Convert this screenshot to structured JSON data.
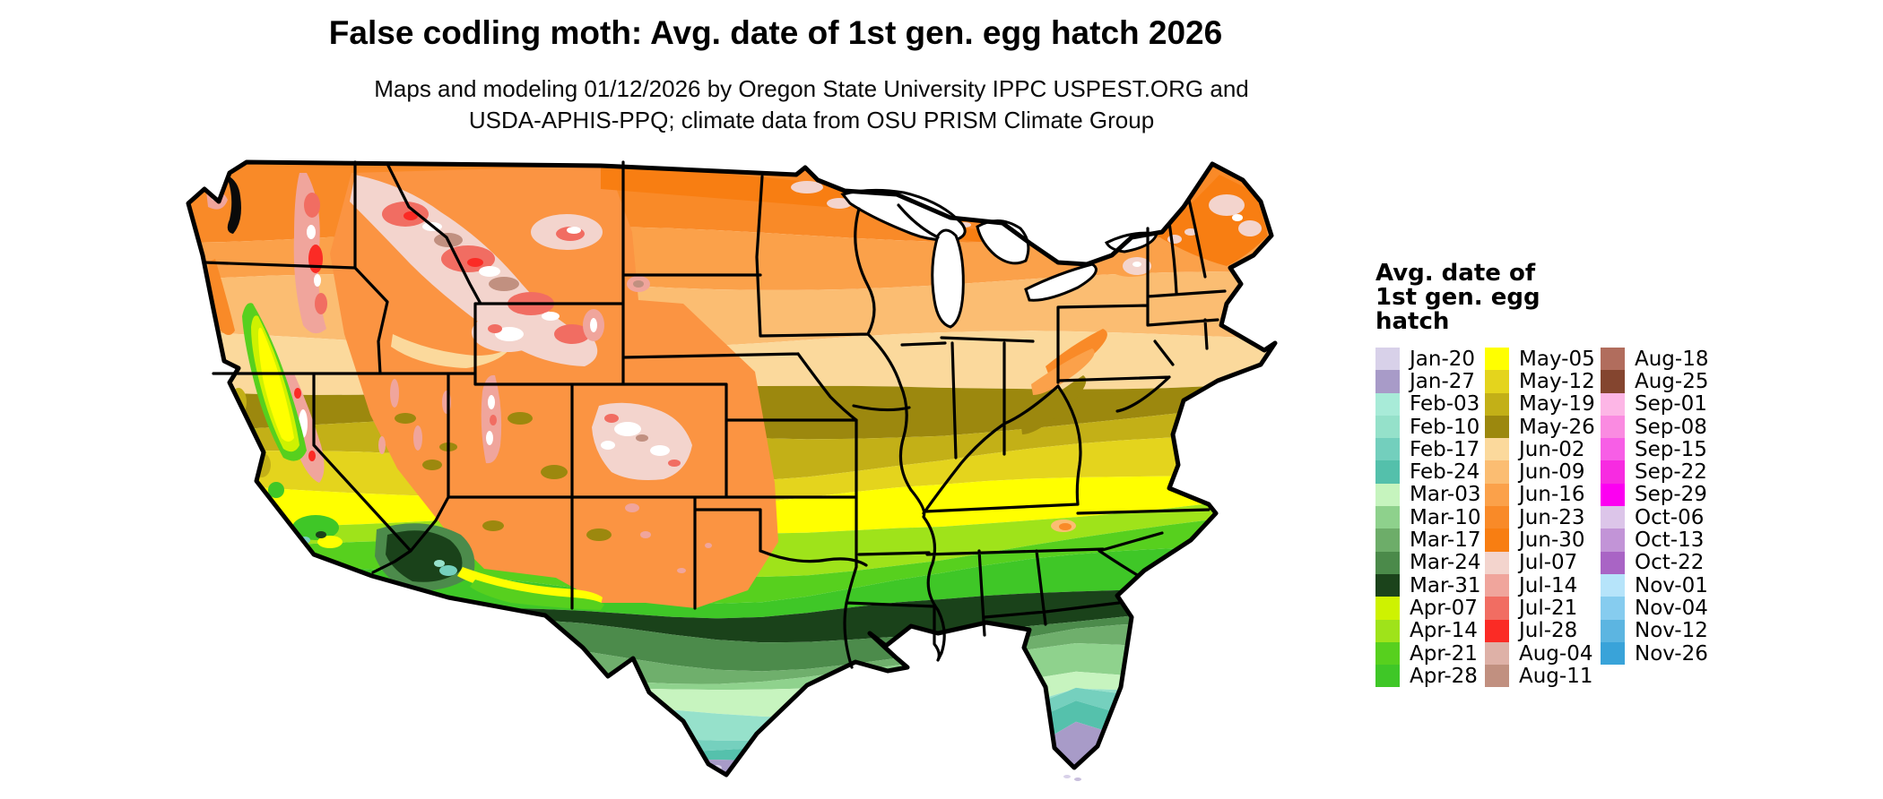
{
  "header": {
    "title": "False codling moth: Avg. date of 1st gen. egg hatch 2026",
    "subtitle_line1": "Maps and modeling 01/12/2026 by Oregon State University IPPC USPEST.ORG and",
    "subtitle_line2": "USDA-APHIS-PPQ; climate data from OSU PRISM Climate Group"
  },
  "legend": {
    "title_lines": [
      "Avg. date of",
      "1st gen. egg",
      "hatch"
    ],
    "columns": [
      [
        {
          "label": "Jan-20",
          "color": "#D8D1E9"
        },
        {
          "label": "Jan-27",
          "color": "#A89BC8"
        },
        {
          "label": "Feb-03",
          "color": "#A8EBD8"
        },
        {
          "label": "Feb-10",
          "color": "#95E1CA"
        },
        {
          "label": "Feb-17",
          "color": "#73CFBD"
        },
        {
          "label": "Feb-24",
          "color": "#54C0AB"
        },
        {
          "label": "Mar-03",
          "color": "#C6F4BE"
        },
        {
          "label": "Mar-10",
          "color": "#8ED18C"
        },
        {
          "label": "Mar-17",
          "color": "#6DAD69"
        },
        {
          "label": "Mar-24",
          "color": "#4B8A4A"
        },
        {
          "label": "Mar-31",
          "color": "#1B431B"
        },
        {
          "label": "Apr-07",
          "color": "#CEF201"
        },
        {
          "label": "Apr-14",
          "color": "#9FE31A"
        },
        {
          "label": "Apr-21",
          "color": "#57D01E"
        },
        {
          "label": "Apr-28",
          "color": "#3FC727"
        }
      ],
      [
        {
          "label": "May-05",
          "color": "#FFFF00"
        },
        {
          "label": "May-12",
          "color": "#E4D41D"
        },
        {
          "label": "May-19",
          "color": "#C3B017"
        },
        {
          "label": "May-26",
          "color": "#9C880E"
        },
        {
          "label": "Jun-02",
          "color": "#FBD99C"
        },
        {
          "label": "Jun-09",
          "color": "#FBBD72"
        },
        {
          "label": "Jun-16",
          "color": "#FBA14A"
        },
        {
          "label": "Jun-23",
          "color": "#F98A28"
        },
        {
          "label": "Jun-30",
          "color": "#F87E12"
        },
        {
          "label": "Jul-07",
          "color": "#F3D4CD"
        },
        {
          "label": "Jul-14",
          "color": "#F0A59C"
        },
        {
          "label": "Jul-21",
          "color": "#F16D62"
        },
        {
          "label": "Jul-28",
          "color": "#FB2B25"
        },
        {
          "label": "Aug-04",
          "color": "#DEB1A7"
        },
        {
          "label": "Aug-11",
          "color": "#C19080"
        }
      ],
      [
        {
          "label": "Aug-18",
          "color": "#B16D5D"
        },
        {
          "label": "Aug-25",
          "color": "#84452F"
        },
        {
          "label": "Sep-01",
          "color": "#FDB6E6"
        },
        {
          "label": "Sep-08",
          "color": "#FA8BE1"
        },
        {
          "label": "Sep-15",
          "color": "#F75EE6"
        },
        {
          "label": "Sep-22",
          "color": "#F72BE1"
        },
        {
          "label": "Sep-29",
          "color": "#FC00F1"
        },
        {
          "label": "Oct-06",
          "color": "#DCC5E9"
        },
        {
          "label": "Oct-13",
          "color": "#C294D7"
        },
        {
          "label": "Oct-22",
          "color": "#A964C5"
        },
        {
          "label": "Nov-01",
          "color": "#B6E4FA"
        },
        {
          "label": "Nov-04",
          "color": "#86CCEF"
        },
        {
          "label": "Nov-12",
          "color": "#5CB5E1"
        },
        {
          "label": "Nov-26",
          "color": "#39A3D9"
        }
      ]
    ]
  },
  "map": {
    "border_color": "#000000",
    "background_color": "#FFFFFF",
    "bands_north_to_south": [
      {
        "color": "#F98A28",
        "to": 95
      },
      {
        "color": "#FBA14A",
        "to": 148
      },
      {
        "color": "#FBBD72",
        "to": 212
      },
      {
        "color": "#FBD99C",
        "to": 265
      },
      {
        "color": "#9C880E",
        "to": 308
      },
      {
        "color": "#C3B017",
        "to": 345
      },
      {
        "color": "#E4D41D",
        "to": 378
      },
      {
        "color": "#FFFF00",
        "to": 412
      },
      {
        "color": "#9FE31A",
        "to": 445
      },
      {
        "color": "#57D01E",
        "to": 472
      },
      {
        "color": "#3FC727",
        "to": 502
      },
      {
        "color": "#1A421A",
        "to": 528
      },
      {
        "color": "#4C8B4B",
        "to": 552
      },
      {
        "color": "#6FAF6C",
        "to": 575
      },
      {
        "color": "#8FD28D",
        "to": 598
      },
      {
        "color": "#C7F4BF",
        "to": 622
      },
      {
        "color": "#96E1CB",
        "to": 645
      },
      {
        "color": "#75D0BE",
        "to": 668
      },
      {
        "color": "#55C1AC",
        "to": 690
      },
      {
        "color": "#A89BC8",
        "to": 760
      }
    ]
  }
}
